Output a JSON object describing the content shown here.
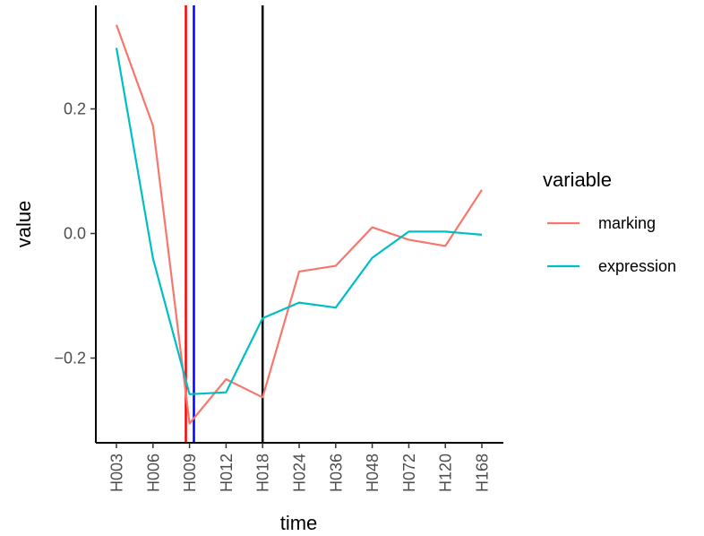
{
  "chart_data": {
    "type": "line",
    "xlabel": "time",
    "ylabel": "value",
    "categories": [
      "H003",
      "H006",
      "H009",
      "H012",
      "H018",
      "H024",
      "H036",
      "H048",
      "H072",
      "H120",
      "H168"
    ],
    "series": [
      {
        "name": "marking",
        "color": "#F8766D",
        "values": [
          0.335,
          0.173,
          -0.305,
          -0.234,
          -0.263,
          -0.061,
          -0.052,
          0.01,
          -0.01,
          -0.02,
          0.07
        ]
      },
      {
        "name": "expression",
        "color": "#00BFC4",
        "values": [
          0.298,
          -0.04,
          -0.258,
          -0.255,
          -0.136,
          -0.111,
          -0.119,
          -0.039,
          0.003,
          0.003,
          -0.002
        ]
      }
    ],
    "yticks": [
      -0.2,
      0.0,
      0.2
    ],
    "ytick_labels": [
      "−0.2",
      "0.0",
      "0.2"
    ],
    "ylim": [
      -0.33,
      0.37
    ],
    "vlines": [
      {
        "x_index": 1.9,
        "color": "#FF0000"
      },
      {
        "x_index": 2.12,
        "color": "#0000FF"
      },
      {
        "x_index": 4,
        "color": "#000000"
      }
    ],
    "legend": {
      "title": "variable",
      "position": "right"
    },
    "grid": false
  }
}
